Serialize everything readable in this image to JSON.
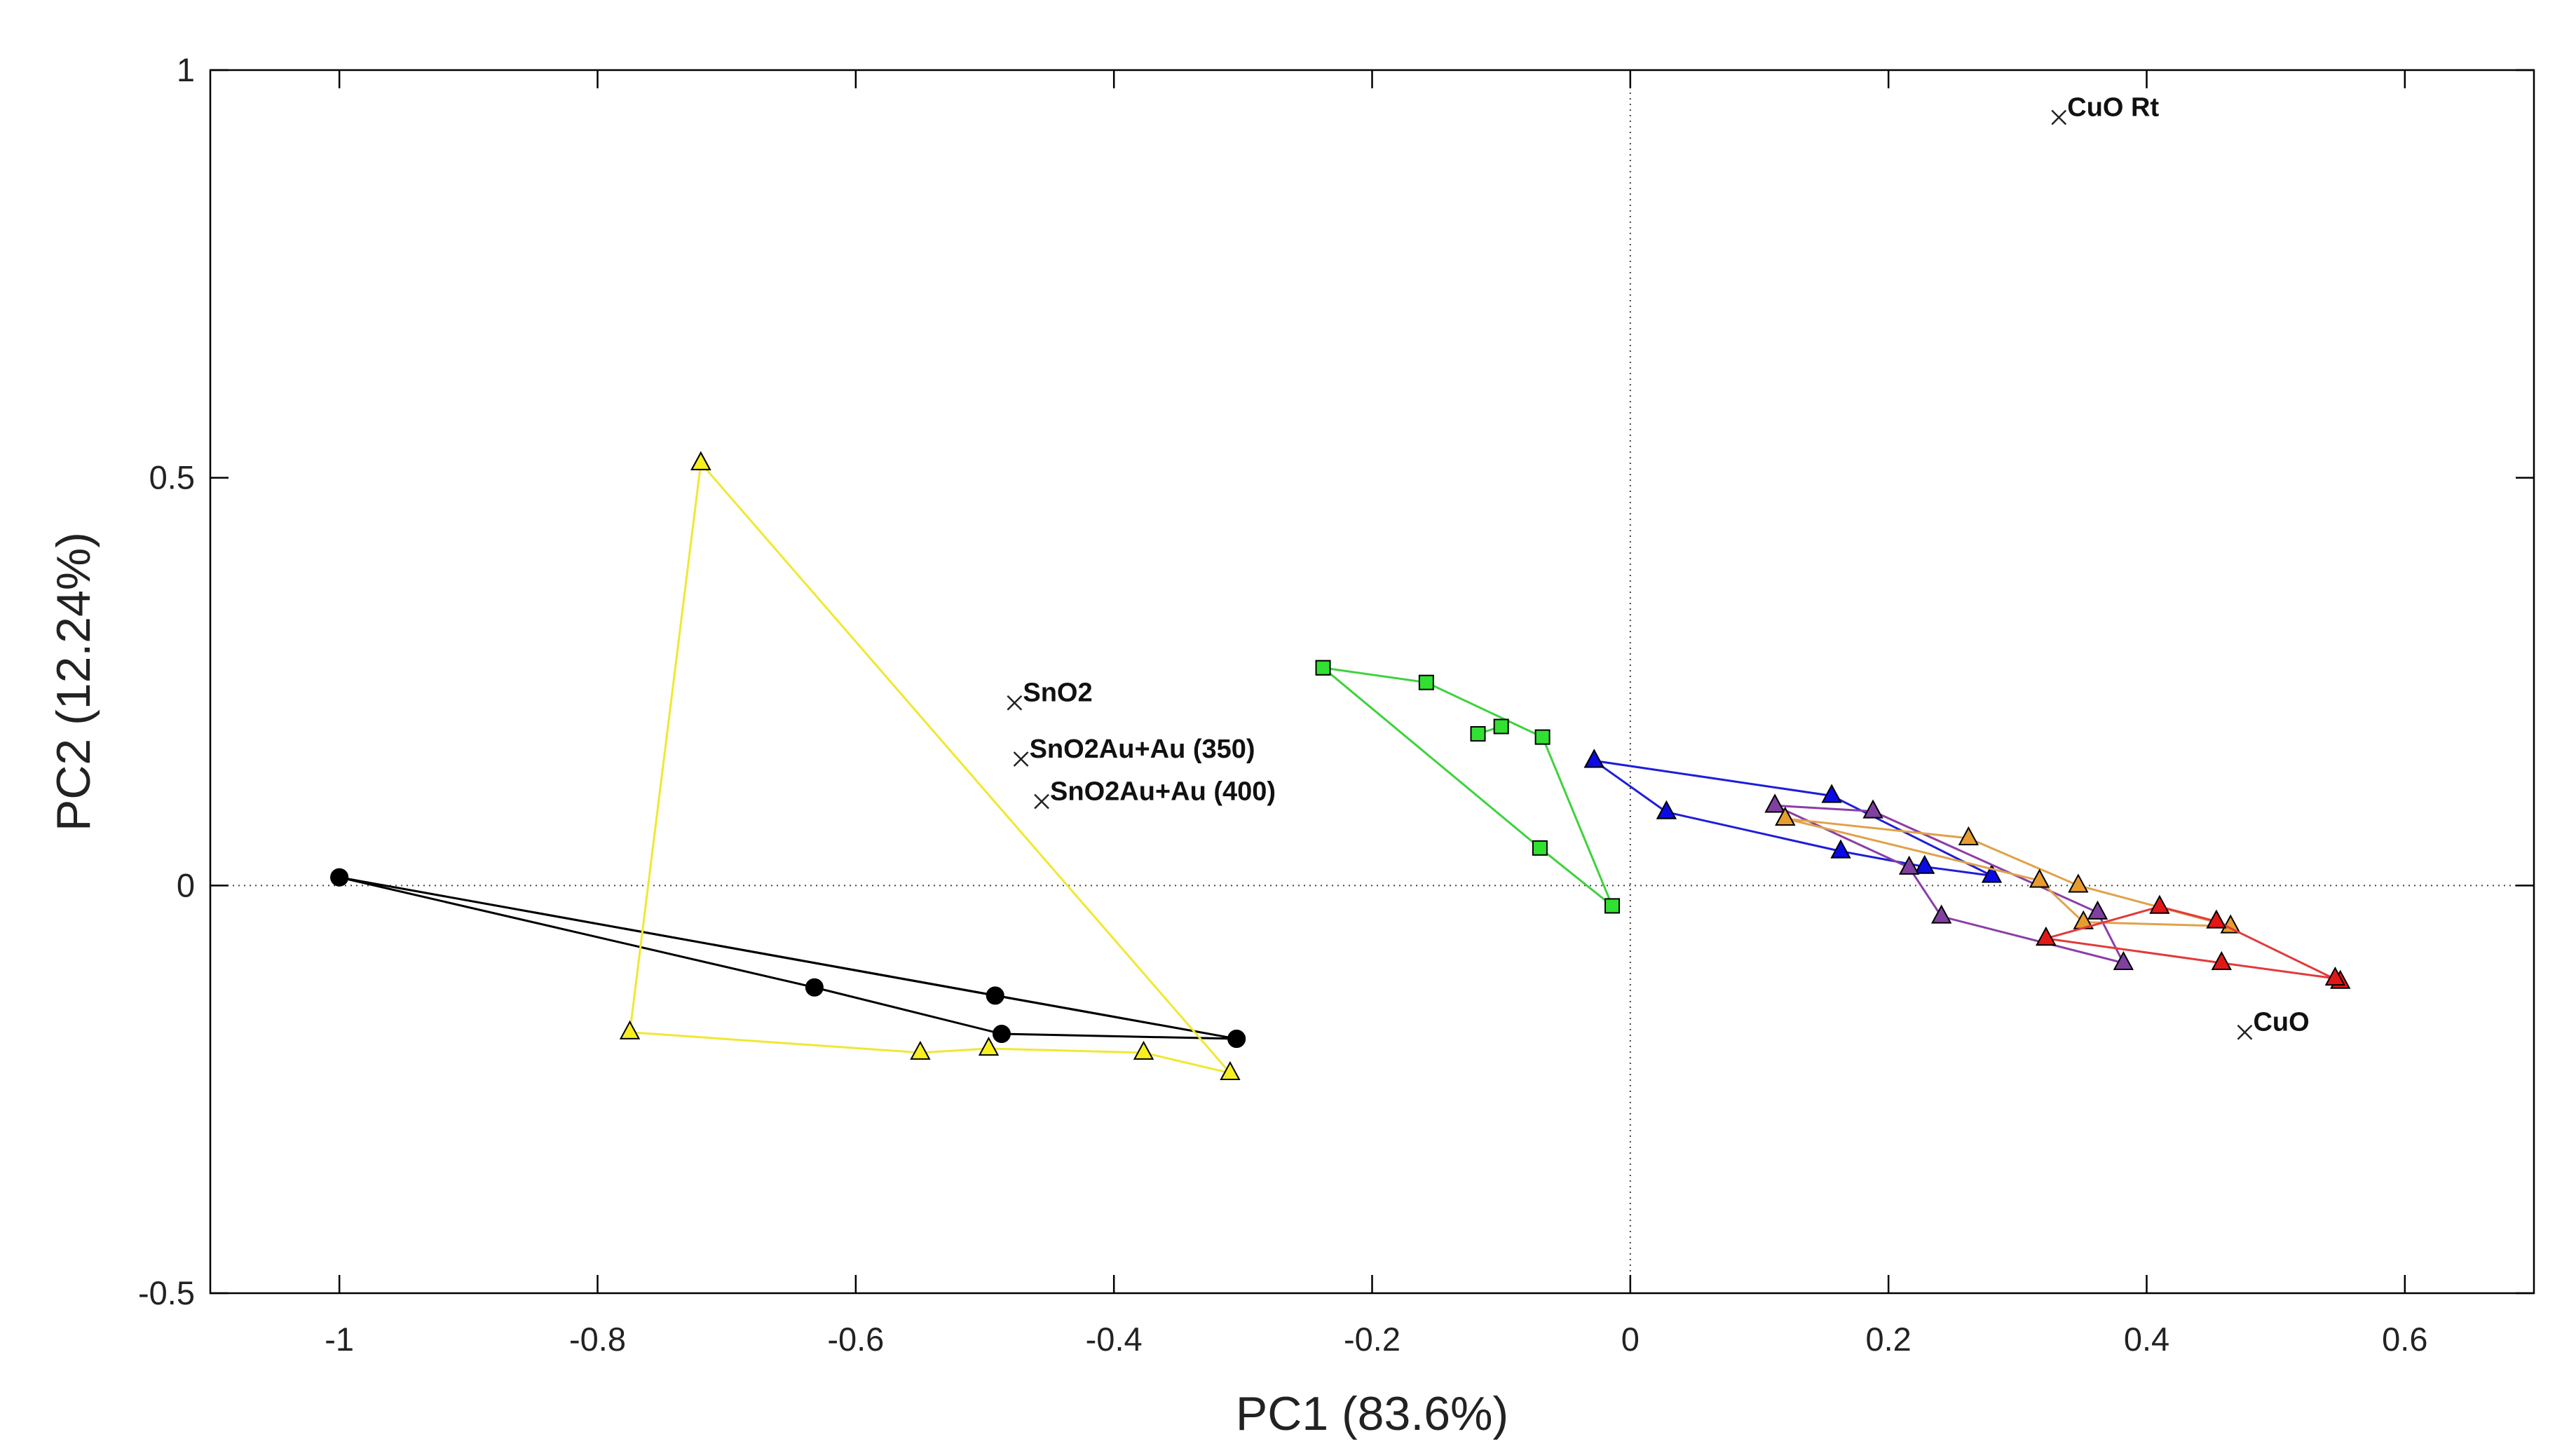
{
  "chart_data": {
    "type": "scatter",
    "title": "",
    "xlabel": "PC1 (83.6%)",
    "ylabel": "PC2 (12.24%)",
    "xlim": [
      -1.1,
      0.7
    ],
    "ylim": [
      -0.5,
      1.0
    ],
    "xticks": [
      -1,
      -0.8,
      -0.6,
      -0.4,
      -0.2,
      0,
      0.2,
      0.4,
      0.6
    ],
    "xtick_labels": [
      "-1",
      "-0.8",
      "-0.6",
      "-0.4",
      "-0.2",
      "0",
      "0.2",
      "0.4",
      "0.6"
    ],
    "yticks": [
      -0.5,
      0,
      0.5,
      1
    ],
    "ytick_labels": [
      "-0.5",
      "0",
      "0.5",
      "1"
    ],
    "reference_lines": {
      "x": 0,
      "y": 0,
      "style": "dotted"
    },
    "series": [
      {
        "name": "black",
        "marker": "circle",
        "color": "#000000",
        "fill": "#000000",
        "closed": true,
        "points": [
          [
            -1.0,
            0.01
          ],
          [
            -0.305,
            -0.188
          ],
          [
            -0.487,
            -0.182
          ],
          [
            -0.632,
            -0.125
          ],
          [
            -1.0,
            0.01
          ],
          [
            -0.492,
            -0.135
          ],
          [
            -0.305,
            -0.188
          ]
        ]
      },
      {
        "name": "yellow",
        "marker": "triangle",
        "color": "#f0e832",
        "fill": "#f7ef1f",
        "closed": true,
        "points": [
          [
            -0.72,
            0.518
          ],
          [
            -0.31,
            -0.23
          ],
          [
            -0.377,
            -0.205
          ],
          [
            -0.497,
            -0.2
          ],
          [
            -0.55,
            -0.205
          ],
          [
            -0.775,
            -0.18
          ],
          [
            -0.72,
            0.518
          ]
        ]
      },
      {
        "name": "green",
        "marker": "square",
        "color": "#3ed23e",
        "fill": "#31e131",
        "closed": false,
        "points": [
          [
            -0.238,
            0.267
          ],
          [
            -0.158,
            0.249
          ],
          [
            -0.068,
            0.182
          ],
          [
            -0.014,
            -0.025
          ],
          [
            -0.07,
            0.046
          ],
          [
            -0.238,
            0.267
          ]
        ]
      },
      {
        "name": "green-inner",
        "marker": "square",
        "color": "#3ed23e",
        "fill": "#31e131",
        "closed": false,
        "points": [
          [
            -0.118,
            0.186
          ],
          [
            -0.1,
            0.195
          ]
        ]
      },
      {
        "name": "blue",
        "marker": "triangle",
        "color": "#1d1ddb",
        "fill": "#0a0ae6",
        "closed": true,
        "points": [
          [
            -0.028,
            0.153
          ],
          [
            0.156,
            0.11
          ],
          [
            0.28,
            0.012
          ],
          [
            0.228,
            0.023
          ],
          [
            0.163,
            0.042
          ],
          [
            0.028,
            0.09
          ],
          [
            -0.028,
            0.153
          ]
        ]
      },
      {
        "name": "purple",
        "marker": "triangle",
        "color": "#8a3ea6",
        "fill": "#8040a0",
        "closed": true,
        "points": [
          [
            0.112,
            0.098
          ],
          [
            0.188,
            0.091
          ],
          [
            0.362,
            -0.033
          ],
          [
            0.382,
            -0.095
          ],
          [
            0.241,
            -0.038
          ],
          [
            0.216,
            0.022
          ],
          [
            0.112,
            0.098
          ]
        ]
      },
      {
        "name": "orange",
        "marker": "triangle",
        "color": "#e0a24a",
        "fill": "#e79c2f",
        "closed": true,
        "points": [
          [
            0.12,
            0.082
          ],
          [
            0.262,
            0.058
          ],
          [
            0.347,
            0.0
          ],
          [
            0.465,
            -0.05
          ],
          [
            0.351,
            -0.045
          ],
          [
            0.317,
            0.006
          ],
          [
            0.12,
            0.082
          ]
        ]
      },
      {
        "name": "red",
        "marker": "triangle",
        "color": "#e23a3a",
        "fill": "#e41717",
        "closed": true,
        "points": [
          [
            0.322,
            -0.065
          ],
          [
            0.41,
            -0.026
          ],
          [
            0.454,
            -0.044
          ],
          [
            0.55,
            -0.118
          ],
          [
            0.546,
            -0.114
          ],
          [
            0.458,
            -0.095
          ],
          [
            0.322,
            -0.065
          ]
        ]
      }
    ],
    "annotations": [
      {
        "label": "SnO2",
        "x": -0.477,
        "y": 0.224,
        "marker": "x"
      },
      {
        "label": "SnO2Au+Au (350)",
        "x": -0.472,
        "y": 0.155,
        "marker": "x"
      },
      {
        "label": "SnO2Au+Au (400)",
        "x": -0.456,
        "y": 0.103,
        "marker": "x"
      },
      {
        "label": "CuO Rt",
        "x": 0.332,
        "y": 0.942,
        "marker": "x"
      },
      {
        "label": "CuO",
        "x": 0.476,
        "y": -0.18,
        "marker": "x"
      }
    ]
  }
}
